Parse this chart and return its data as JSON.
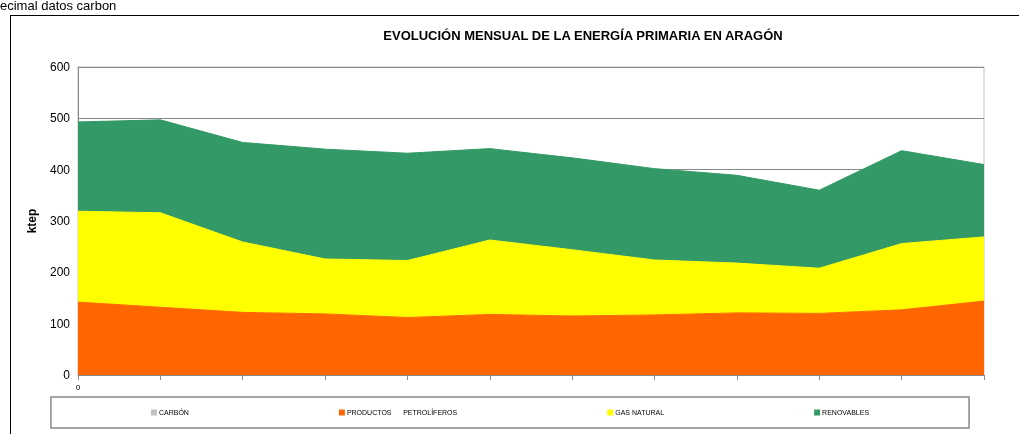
{
  "chart_data": {
    "type": "area",
    "title": "EVOLUCIÓN MENSUAL DE LA ENERGÍA PRIMARIA EN ARAGÓN",
    "ylabel": "ktep",
    "annotations": [
      "ecimal datos carbon"
    ],
    "categories": [
      "0",
      null,
      null,
      null,
      null,
      null,
      null,
      null,
      null,
      null,
      null,
      null
    ],
    "stacked": true,
    "series": [
      {
        "name": "CARBÓN",
        "color": "#c0c0c0",
        "values": [
          null,
          null,
          null,
          null,
          null,
          null,
          null,
          null,
          null,
          null,
          null,
          null
        ]
      },
      {
        "name": "PRODUCTOS      PETROLÍFEROS",
        "color": "#ff6600",
        "values": [
          142,
          132,
          122,
          119,
          112,
          118,
          115,
          117,
          121,
          120,
          127,
          144
        ]
      },
      {
        "name": "GAS NATURAL",
        "color": "#ffff00",
        "values": [
          177,
          184,
          137,
          107,
          111,
          145,
          129,
          107,
          97,
          88,
          129,
          125
        ]
      },
      {
        "name": "RENOVABLES",
        "color": "#339966",
        "values": [
          174,
          181,
          194,
          214,
          209,
          178,
          179,
          178,
          171,
          152,
          181,
          141
        ]
      }
    ],
    "ylim": [
      0,
      600
    ],
    "yticks": [
      0,
      100,
      200,
      300,
      400,
      500,
      600
    ],
    "grid": "y",
    "legend": "bottom",
    "marker": "none"
  }
}
